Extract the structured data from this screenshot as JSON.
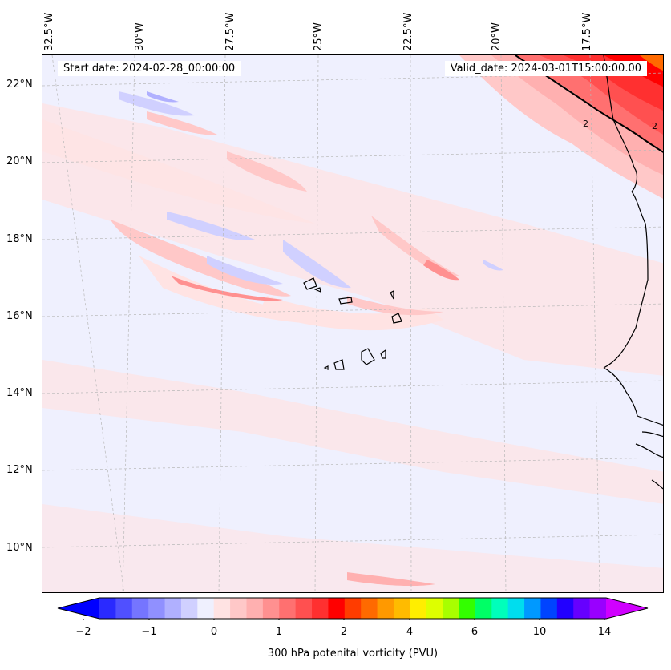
{
  "header": {
    "start_date": "Start date: 2024-02-28_00:00:00",
    "valid_date": "Valid_date: 2024-03-01T15:00:00.00"
  },
  "longitude_labels": [
    "32.5°W",
    "30°W",
    "27.5°W",
    "25°W",
    "22.5°W",
    "20°W",
    "17.5°W"
  ],
  "latitude_labels": [
    "22°N",
    "20°N",
    "18°N",
    "16°N",
    "14°N",
    "12°N",
    "10°N"
  ],
  "contour_labels": [
    "2",
    "2"
  ],
  "colorbar": {
    "label": "300 hPa potenital vorticity (PVU)",
    "tick_labels": [
      "−2",
      "−1",
      "0",
      "1",
      "2",
      "4",
      "6",
      "10",
      "14"
    ],
    "colors": [
      "#0000ff",
      "#2a2aff",
      "#5050ff",
      "#7575ff",
      "#9090ff",
      "#b0b0ff",
      "#d0d0ff",
      "#eff0fe",
      "#ffe3e3",
      "#ffc8c8",
      "#ffb0b0",
      "#ff9090",
      "#ff7070",
      "#ff5050",
      "#ff3030",
      "#ff0000",
      "#ff3c00",
      "#ff6a00",
      "#ff9900",
      "#ffbb00",
      "#ffee00",
      "#ddff00",
      "#a8ff00",
      "#33ff00",
      "#00ff66",
      "#00ffbb",
      "#00ddee",
      "#0099ff",
      "#0044ff",
      "#2200ff",
      "#6600ff",
      "#9900ff",
      "#d000ff"
    ],
    "extend": "both"
  },
  "map": {
    "projection": "conic",
    "lon_range": [
      "33°W",
      "15.5°W"
    ],
    "lat_range": [
      "9°N",
      "23°N"
    ],
    "gridlines": true,
    "coastline_color": "#000000",
    "highlight_color": "#ff0000"
  }
}
